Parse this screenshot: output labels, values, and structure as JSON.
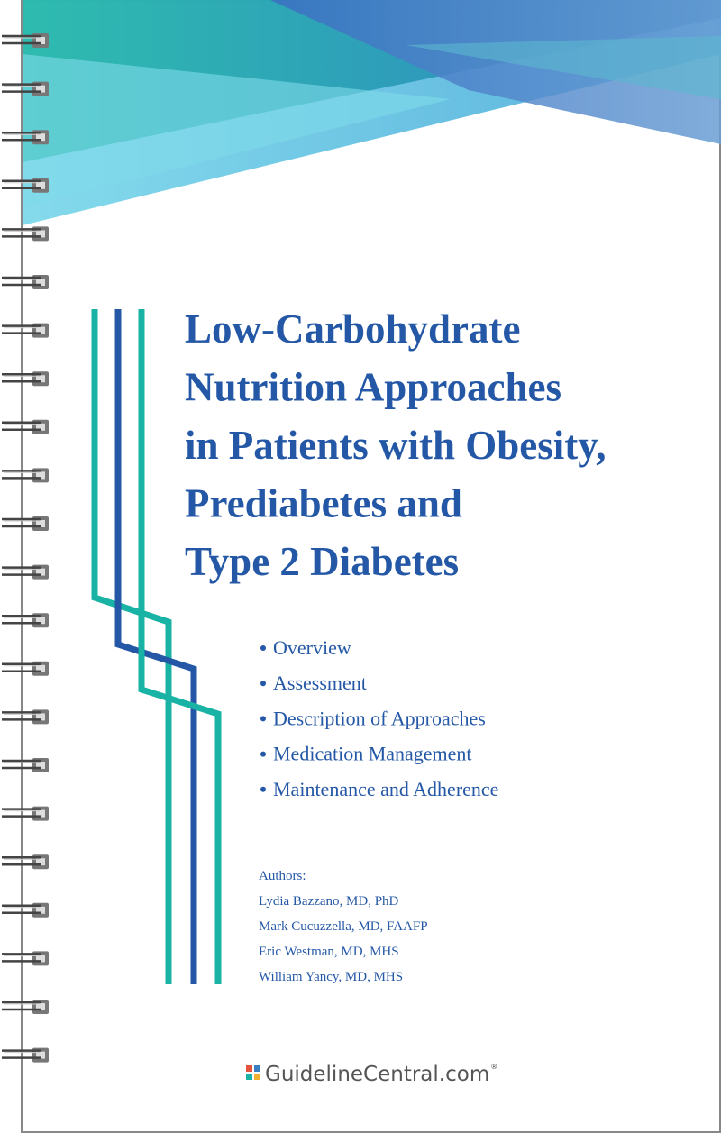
{
  "title_lines": [
    "Low-Carbohydrate",
    "Nutrition Approaches",
    "in Patients with Obesity,",
    "Prediabetes and",
    "Type 2 Diabetes"
  ],
  "topics": [
    "Overview",
    "Assessment",
    "Description of Approaches",
    "Medication Management",
    "Maintenance and Adherence"
  ],
  "authors_heading": "Authors:",
  "authors": [
    "Lydia Bazzano, MD, PhD",
    "Mark Cucuzzella, MD, FAAFP",
    "Eric Westman, MD, MHS",
    "William Yancy, MD, MHS"
  ],
  "brand": {
    "name": "GuidelineCentral.com",
    "mark": "®"
  }
}
